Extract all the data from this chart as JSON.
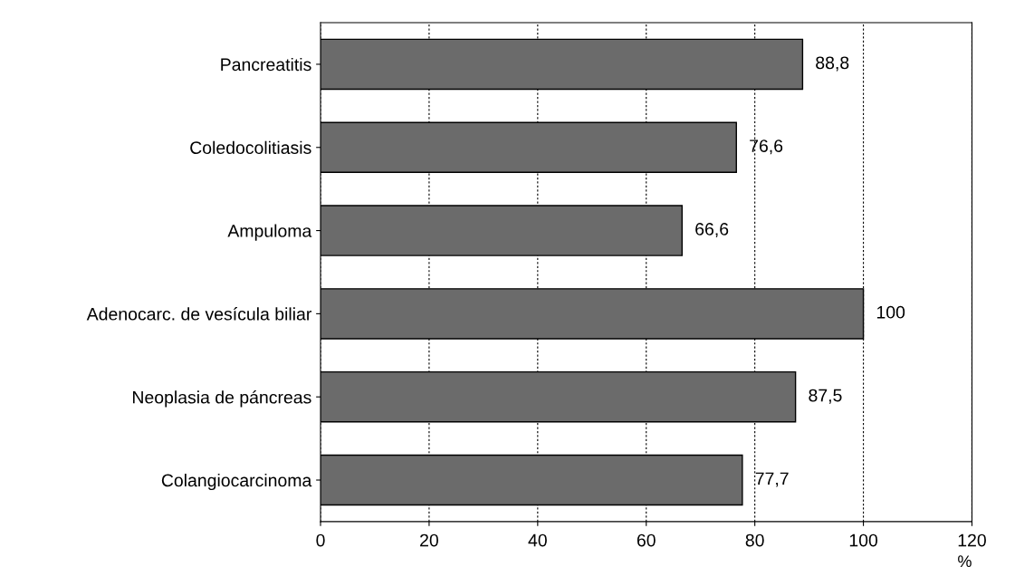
{
  "chart_data": {
    "type": "bar",
    "orientation": "horizontal",
    "xlabel": "%",
    "categories": [
      "Pancreatitis",
      "Coledocolitiasis",
      "Ampuloma",
      "Adenocarc. de vesícula biliar",
      "Neoplasia de páncreas",
      "Colangiocarcinoma"
    ],
    "values": [
      88.8,
      76.6,
      66.6,
      100,
      87.5,
      77.7
    ],
    "value_labels": [
      "88,8",
      "76,6",
      "66,6",
      "100",
      "87,5",
      "77,7"
    ],
    "color": "#6b6b6b",
    "xlim": [
      0,
      120
    ],
    "xticks": [
      0,
      20,
      40,
      60,
      80,
      100,
      120
    ],
    "grid": "x"
  }
}
